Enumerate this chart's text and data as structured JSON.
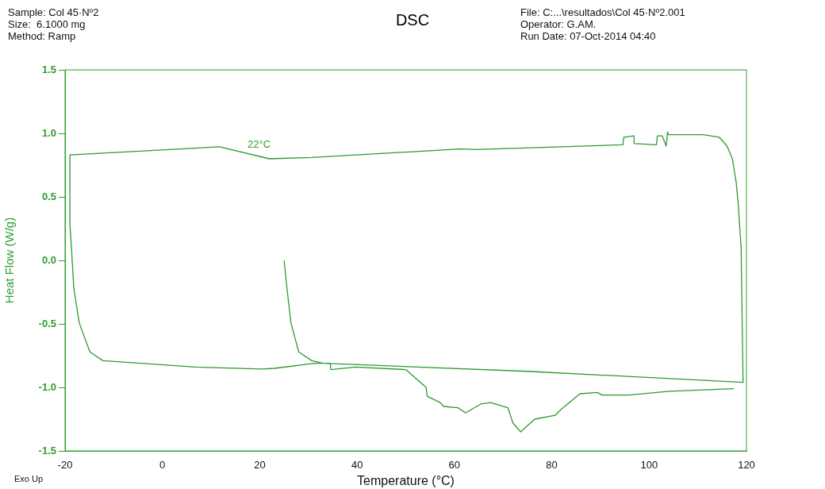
{
  "chart_data": {
    "type": "line",
    "title": "DSC",
    "xlabel": "Temperature (°C)",
    "ylabel": "Heat Flow (W/g)",
    "annotations": [
      "Sample: Col 45·Nº2",
      "Size:  6.1000 mg",
      "Method: Ramp",
      "File: C:...\\resultados\\Col 45·Nº2.001",
      "Operator: G.AM.",
      "Run Date: 07-Oct-2014 04:40",
      "Exo Up",
      "22°C"
    ],
    "xlim": [
      -20,
      120
    ],
    "xticks": [
      -20,
      0,
      20,
      40,
      60,
      80,
      100,
      120
    ],
    "ylim": [
      -1.5,
      1.5
    ],
    "yticks": [
      {
        "value": -1.5,
        "label": "-1.5"
      },
      {
        "value": -1,
        "label": "-1.0"
      },
      {
        "value": -0.5,
        "label": "-0.5"
      },
      {
        "value": 0,
        "label": "0.0"
      },
      {
        "value": 0.5,
        "label": "0.5"
      },
      {
        "value": 1,
        "label": "1.0"
      },
      {
        "value": 1.5,
        "label": "1.5"
      }
    ],
    "grid": false,
    "legend": false,
    "marker": "none",
    "line_style": "solid",
    "series": [
      {
        "color": "#2e9a2e",
        "x": [
          25.0,
          25.6,
          26.4,
          28.0,
          30.7,
          33.0,
          75.8,
          119.3,
          118.9,
          118.3,
          117.9,
          117.1,
          116.0,
          114.4,
          111.1,
          104.0,
          103.8,
          103.5,
          102.7,
          101.7,
          101.5,
          97.0,
          96.9,
          94.8,
          94.6,
          64.4,
          61.2,
          30.7,
          22.0,
          11.7,
          -19.0,
          -19.0,
          -18.7,
          -18.2,
          -17.1,
          -14.9,
          -12.2,
          6.8,
          20.4,
          23.0,
          31.3,
          34.5,
          34.6,
          39.7,
          50.0,
          54.2,
          54.4,
          57.1,
          57.8,
          60.7,
          62.3,
          65.5,
          67.4,
          71.0,
          72.0,
          73.6,
          76.5,
          80.7,
          82.0,
          85.8,
          89.4,
          90.3,
          95.8,
          104.2,
          117.4
        ],
        "values": [
          0.0,
          -0.22,
          -0.49,
          -0.72,
          -0.79,
          -0.81,
          -0.875,
          -0.96,
          0.1,
          0.45,
          0.61,
          0.8,
          0.9,
          0.97,
          0.99,
          0.99,
          1.01,
          0.9,
          0.98,
          0.98,
          0.91,
          0.92,
          0.98,
          0.97,
          0.91,
          0.873,
          0.877,
          0.81,
          0.8,
          0.894,
          0.83,
          0.28,
          0.11,
          -0.22,
          -0.49,
          -0.72,
          -0.79,
          -0.84,
          -0.856,
          -0.85,
          -0.81,
          -0.81,
          -0.86,
          -0.84,
          -0.86,
          -1.0,
          -1.07,
          -1.12,
          -1.15,
          -1.16,
          -1.2,
          -1.13,
          -1.12,
          -1.16,
          -1.28,
          -1.35,
          -1.25,
          -1.22,
          -1.17,
          -1.05,
          -1.04,
          -1.06,
          -1.06,
          -1.03,
          -1.01
        ]
      }
    ]
  }
}
